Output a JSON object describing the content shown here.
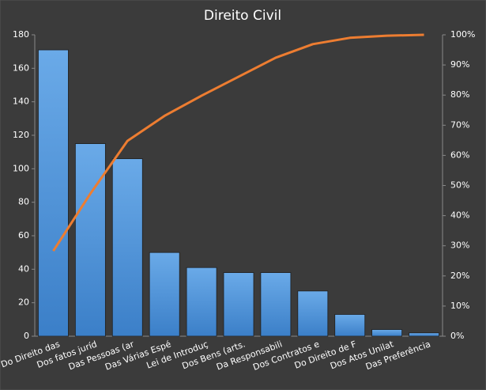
{
  "chart_data": {
    "type": "bar",
    "title": "Direito Civil",
    "categories": [
      "Do Direito das",
      "Dos fatos juríd",
      "Das Pessoas (ar",
      "Das Várias Espé",
      "Lei de Introduç",
      "Dos Bens (arts.",
      "Da Responsabili",
      "Dos Contratos e",
      "Do Direito de F",
      "Dos Atos Unilat",
      "Das Preferência"
    ],
    "series": [
      {
        "type": "bar",
        "color": "#4f93d8",
        "values": [
          171,
          115,
          106,
          50,
          41,
          38,
          38,
          27,
          13,
          4,
          2
        ]
      },
      {
        "type": "line",
        "axis": "y2",
        "color": "#ed7d31",
        "values": [
          28.3,
          47.3,
          64.8,
          73.1,
          79.8,
          86.1,
          92.4,
          96.9,
          99.0,
          99.7,
          100
        ]
      }
    ],
    "ylim": [
      0,
      180
    ],
    "yticks": [
      0,
      20,
      40,
      60,
      80,
      100,
      120,
      140,
      160,
      180
    ],
    "y2lim": [
      0,
      100
    ],
    "y2ticks": [
      {
        "value": 0,
        "label": "0%"
      },
      {
        "value": 10,
        "label": "10%"
      },
      {
        "value": 20,
        "label": "20%"
      },
      {
        "value": 30,
        "label": "30%"
      },
      {
        "value": 40,
        "label": "40%"
      },
      {
        "value": 50,
        "label": "50%"
      },
      {
        "value": 60,
        "label": "60%"
      },
      {
        "value": 70,
        "label": "70%"
      },
      {
        "value": 80,
        "label": "80%"
      },
      {
        "value": 90,
        "label": "90%"
      },
      {
        "value": 100,
        "label": "100%"
      }
    ]
  }
}
